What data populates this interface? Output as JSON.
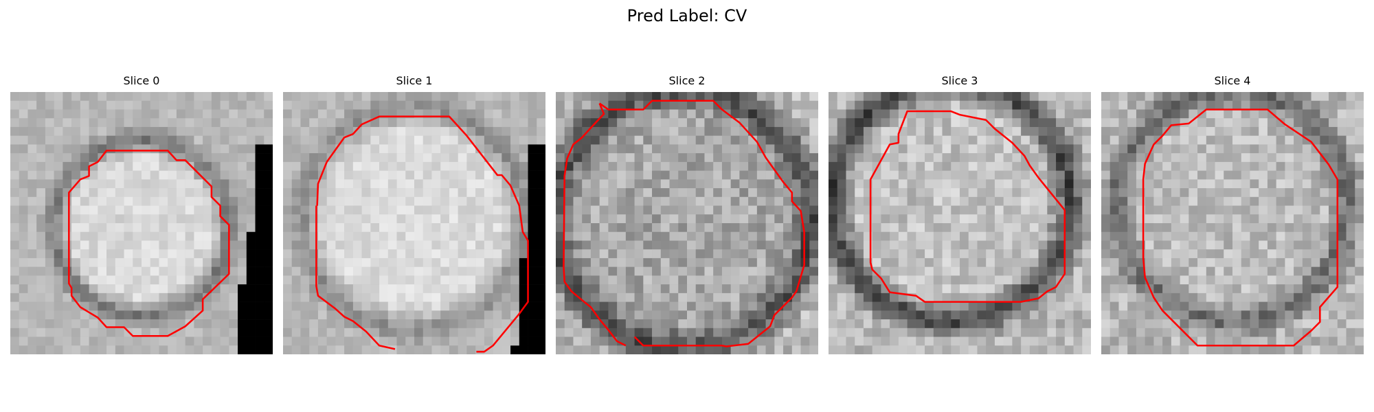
{
  "figure": {
    "title": "Pred Label: CV"
  },
  "slices": [
    {
      "title": "Slice 0",
      "image": "grayscale-ct-slice",
      "contour_color": "#ff0000"
    },
    {
      "title": "Slice 1",
      "image": "grayscale-ct-slice",
      "contour_color": "#ff0000"
    },
    {
      "title": "Slice 2",
      "image": "grayscale-ct-slice",
      "contour_color": "#ff0000"
    },
    {
      "title": "Slice 3",
      "image": "grayscale-ct-slice",
      "contour_color": "#ff0000"
    },
    {
      "title": "Slice 4",
      "image": "grayscale-ct-slice",
      "contour_color": "#ff0000"
    }
  ]
}
